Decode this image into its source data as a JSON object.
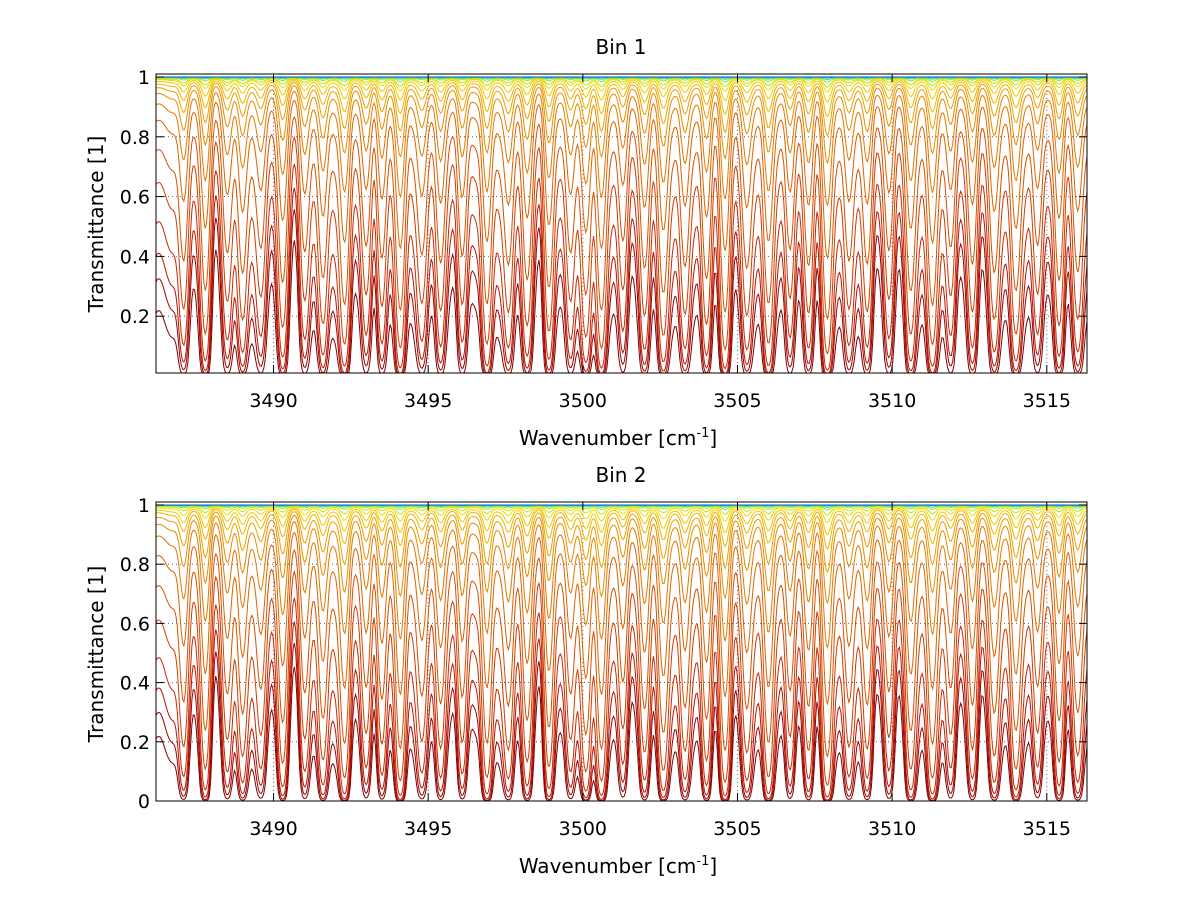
{
  "chart_data": [
    {
      "type": "line",
      "title": "Bin 1",
      "xlabel": "Wavenumber [cm",
      "xlabel_sup": "-1",
      "xlabel_end": "]",
      "ylabel": "Transmittance [1]",
      "xlim": [
        3486.2,
        3516.3
      ],
      "ylim": [
        0.01,
        1.01
      ],
      "xticks": [
        3490,
        3495,
        3500,
        3505,
        3510,
        3515
      ],
      "yticks": [
        0.2,
        0.4,
        0.6,
        0.8,
        1
      ],
      "ytick_labels": [
        "0.2",
        "0.4",
        "0.6",
        "0.8",
        "1"
      ],
      "grid": "dotted",
      "series_levels": [
        0.005,
        0.02,
        0.045,
        0.1,
        0.22,
        0.38,
        0.58,
        0.72,
        0.82,
        0.88,
        0.92,
        0.95,
        0.97,
        0.98,
        0.99,
        0.995,
        0.998,
        1.0
      ],
      "series_colors": [
        "#800000",
        "#a00000",
        "#b81400",
        "#c82800",
        "#d03c00",
        "#d85000",
        "#dd6400",
        "#e27800",
        "#e68c00",
        "#eaa000",
        "#eeb400",
        "#f0c800",
        "#e8dc00",
        "#c8e400",
        "#90e040",
        "#50d890",
        "#20c0c8",
        "#0060c0"
      ]
    },
    {
      "type": "line",
      "title": "Bin 2",
      "xlabel": "Wavenumber [cm",
      "xlabel_sup": "-1",
      "xlabel_end": "]",
      "ylabel": "Transmittance [1]",
      "xlim": [
        3486.2,
        3516.3
      ],
      "ylim": [
        0,
        1.01
      ],
      "xticks": [
        3490,
        3495,
        3500,
        3505,
        3510,
        3515
      ],
      "yticks": [
        0,
        0.2,
        0.4,
        0.6,
        0.8,
        1
      ],
      "ytick_labels": [
        "0",
        "0.2",
        "0.4",
        "0.6",
        "0.8",
        "1"
      ],
      "grid": "dotted",
      "series_levels": [
        0.005,
        0.015,
        0.035,
        0.08,
        0.18,
        0.33,
        0.52,
        0.68,
        0.79,
        0.86,
        0.91,
        0.94,
        0.965,
        0.98,
        0.99,
        0.995,
        0.998,
        1.0
      ],
      "series_colors": [
        "#800000",
        "#a00000",
        "#b81400",
        "#c82800",
        "#d03c00",
        "#d85000",
        "#dd6400",
        "#e27800",
        "#e68c00",
        "#eaa000",
        "#eeb400",
        "#f0c800",
        "#e8dc00",
        "#c8e400",
        "#90e040",
        "#50d890",
        "#20c0c8",
        "#0060c0"
      ]
    }
  ]
}
